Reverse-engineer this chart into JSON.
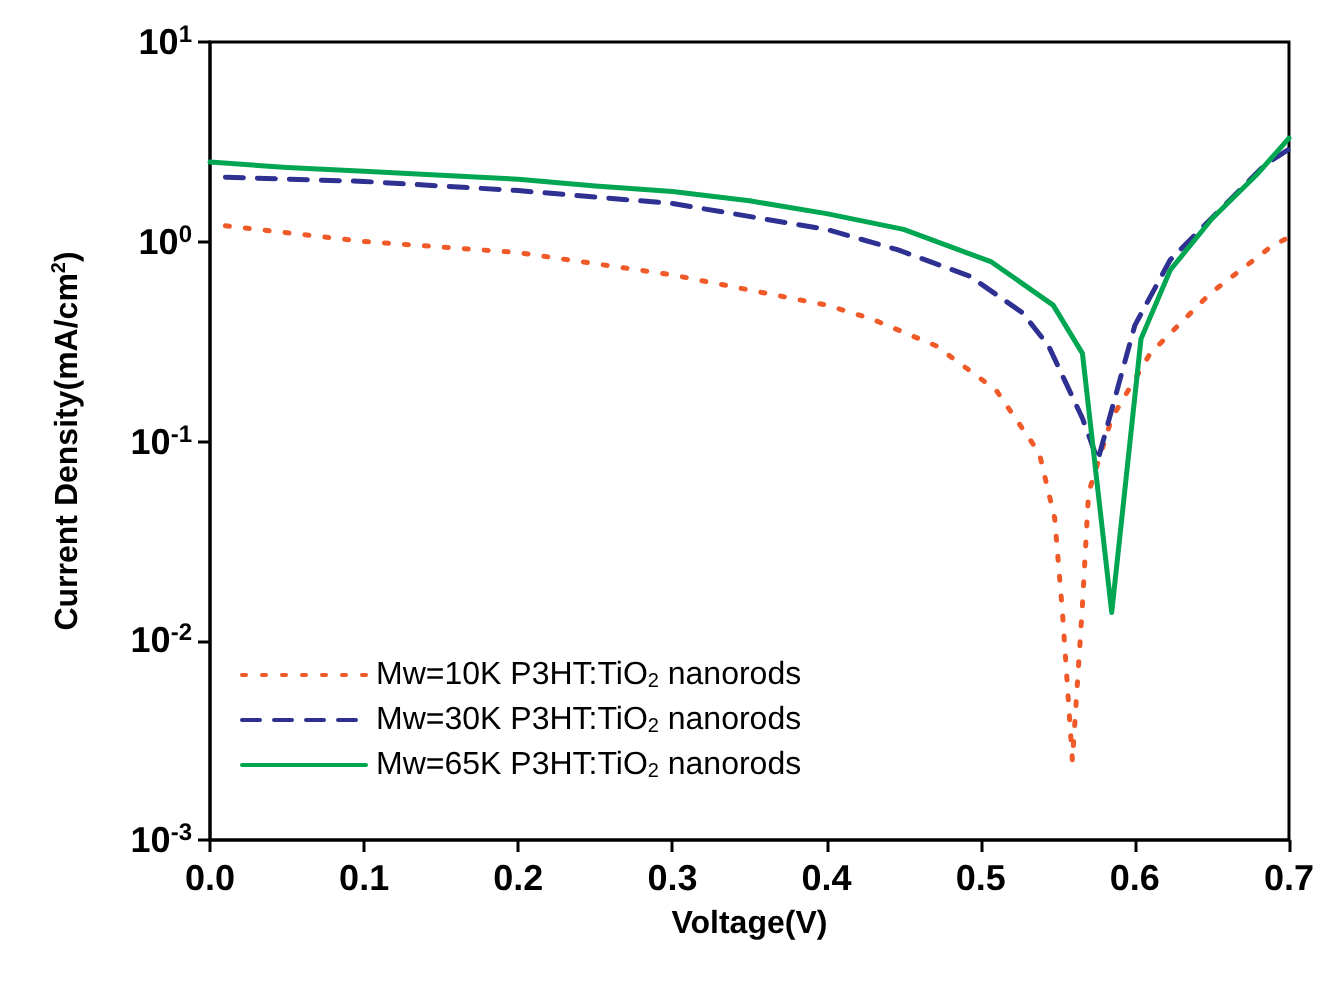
{
  "chart_data": {
    "type": "line",
    "xlabel": "Voltage(V)",
    "ylabel": "Current Density(mA/cm$^{2}$)",
    "log": "y",
    "xlim": [
      0,
      0.7
    ],
    "ylim": [
      0.001,
      10
    ],
    "xticks": [
      {
        "value": 0,
        "label": "0.0"
      },
      {
        "value": 0.1,
        "label": "0.1"
      },
      {
        "value": 0.2,
        "label": "0.2"
      },
      {
        "value": 0.3,
        "label": "0.3"
      },
      {
        "value": 0.4,
        "label": "0.4"
      },
      {
        "value": 0.5,
        "label": "0.5"
      },
      {
        "value": 0.6,
        "label": "0.6"
      },
      {
        "value": 0.7,
        "label": "0.7"
      }
    ],
    "yticks": [
      {
        "value": 0.001,
        "label": "10$^{-3}$"
      },
      {
        "value": 0.01,
        "label": "10$^{-2}$"
      },
      {
        "value": 0.1,
        "label": "10$^{-1}$"
      },
      {
        "value": 1,
        "label": "10$^{0}$"
      },
      {
        "value": 10,
        "label": "10$^{1}$"
      }
    ],
    "grid": false,
    "legend": "bottom left",
    "marker": "none",
    "series": [
      {
        "name": "Mw=10K P3HT:TiO$_{2}$ nanorods",
        "color": "#f05a28",
        "line_style": "dotted",
        "x": [
          0.01,
          0.1,
          0.2,
          0.3,
          0.4,
          0.429,
          0.471,
          0.51,
          0.538,
          0.548,
          0.553,
          0.5595,
          0.566,
          0.57,
          0.585,
          0.61,
          0.649,
          0.689,
          0.7
        ],
        "values": [
          1.2,
          1.0,
          0.88,
          0.68,
          0.48,
          0.41,
          0.3,
          0.18,
          0.087,
          0.041,
          0.014,
          0.0025,
          0.015,
          0.055,
          0.13,
          0.275,
          0.55,
          0.95,
          1.05
        ]
      },
      {
        "name": "Mw=30K P3HT:TiO$_{2}$ nanorods",
        "color": "#2e3192",
        "line_style": "dashed",
        "x": [
          0.01,
          0.1,
          0.2,
          0.3,
          0.4,
          0.446,
          0.493,
          0.527,
          0.544,
          0.566,
          0.576,
          0.6,
          0.623,
          0.685,
          0.7
        ],
        "values": [
          2.1,
          2.0,
          1.8,
          1.55,
          1.15,
          0.91,
          0.67,
          0.44,
          0.3,
          0.13,
          0.08,
          0.38,
          0.81,
          2.45,
          2.9
        ]
      },
      {
        "name": "Mw=65K P3HT:TiO$_{2}$ nanorods",
        "color": "#00a651",
        "line_style": "solid",
        "x": [
          0,
          0.05,
          0.1,
          0.15,
          0.2,
          0.25,
          0.3,
          0.35,
          0.4,
          0.45,
          0.507,
          0.547,
          0.566,
          0.585,
          0.604,
          0.623,
          0.65,
          0.68,
          0.7
        ],
        "values": [
          2.5,
          2.35,
          2.25,
          2.15,
          2.05,
          1.9,
          1.78,
          1.6,
          1.38,
          1.15,
          0.79,
          0.48,
          0.275,
          0.0138,
          0.325,
          0.72,
          1.3,
          2.2,
          3.3
        ]
      }
    ]
  }
}
